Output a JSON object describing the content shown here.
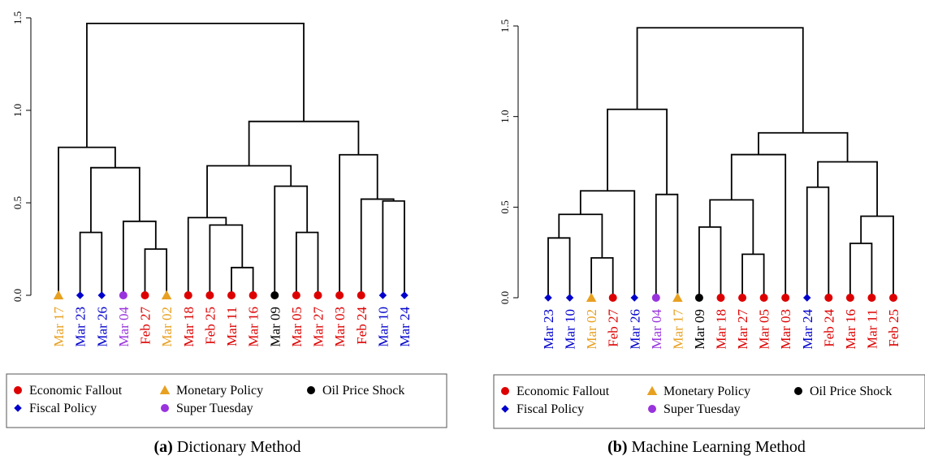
{
  "categories": {
    "Economic Fallout": {
      "color": "#dd0000",
      "marker": "circle"
    },
    "Monetary Policy": {
      "color": "#e8a020",
      "marker": "triangle"
    },
    "Oil Price Shock": {
      "color": "#000000",
      "marker": "circle"
    },
    "Fiscal Policy": {
      "color": "#0000cc",
      "marker": "diamond"
    },
    "Super Tuesday": {
      "color": "#9933dd",
      "marker": "circle"
    }
  },
  "chart_data": [
    {
      "type": "dendrogram",
      "caption_tag": "(a)",
      "caption": "Dictionary Method",
      "ylim": [
        0,
        1.5
      ],
      "yticks": [
        "0.0",
        "0.5",
        "1.0",
        "1.5"
      ],
      "leaves": [
        {
          "label": "Mar 17",
          "category": "Monetary Policy"
        },
        {
          "label": "Mar 23",
          "category": "Fiscal Policy"
        },
        {
          "label": "Mar 26",
          "category": "Fiscal Policy"
        },
        {
          "label": "Mar 04",
          "category": "Super Tuesday"
        },
        {
          "label": "Feb 27",
          "category": "Economic Fallout"
        },
        {
          "label": "Mar 02",
          "category": "Monetary Policy"
        },
        {
          "label": "Mar 18",
          "category": "Economic Fallout"
        },
        {
          "label": "Feb 25",
          "category": "Economic Fallout"
        },
        {
          "label": "Mar 11",
          "category": "Economic Fallout"
        },
        {
          "label": "Mar 16",
          "category": "Economic Fallout"
        },
        {
          "label": "Mar 09",
          "category": "Oil Price Shock"
        },
        {
          "label": "Mar 05",
          "category": "Economic Fallout"
        },
        {
          "label": "Mar 27",
          "category": "Economic Fallout"
        },
        {
          "label": "Mar 03",
          "category": "Economic Fallout"
        },
        {
          "label": "Feb 24",
          "category": "Economic Fallout"
        },
        {
          "label": "Mar 10",
          "category": "Fiscal Policy"
        },
        {
          "label": "Mar 24",
          "category": "Fiscal Policy"
        }
      ],
      "merges": [
        [
          1,
          2,
          0.34
        ],
        [
          4,
          5,
          0.25
        ],
        [
          3,
          18,
          0.4
        ],
        [
          17,
          19,
          0.69
        ],
        [
          0,
          20,
          0.8
        ],
        [
          8,
          9,
          0.15
        ],
        [
          7,
          22,
          0.38
        ],
        [
          6,
          23,
          0.42
        ],
        [
          11,
          12,
          0.34
        ],
        [
          10,
          25,
          0.59
        ],
        [
          24,
          26,
          0.7
        ],
        [
          15,
          16,
          0.51
        ],
        [
          14,
          28,
          0.52
        ],
        [
          13,
          29,
          0.76
        ],
        [
          27,
          30,
          0.94
        ],
        [
          21,
          31,
          1.47
        ]
      ],
      "legend": {
        "rows": [
          [
            "Economic Fallout",
            "Monetary Policy",
            "Oil Price Shock"
          ],
          [
            "Fiscal Policy",
            "Super Tuesday"
          ]
        ]
      }
    },
    {
      "type": "dendrogram",
      "caption_tag": "(b)",
      "caption": "Machine Learning Method",
      "ylim": [
        0,
        1.5
      ],
      "yticks": [
        "0.0",
        "0.5",
        "1.0",
        "1.5"
      ],
      "leaves": [
        {
          "label": "Mar 23",
          "category": "Fiscal Policy"
        },
        {
          "label": "Mar 10",
          "category": "Fiscal Policy"
        },
        {
          "label": "Mar 02",
          "category": "Monetary Policy"
        },
        {
          "label": "Feb 27",
          "category": "Economic Fallout"
        },
        {
          "label": "Mar 26",
          "category": "Fiscal Policy"
        },
        {
          "label": "Mar 04",
          "category": "Super Tuesday"
        },
        {
          "label": "Mar 17",
          "category": "Monetary Policy"
        },
        {
          "label": "Mar 09",
          "category": "Oil Price Shock"
        },
        {
          "label": "Mar 18",
          "category": "Economic Fallout"
        },
        {
          "label": "Mar 27",
          "category": "Economic Fallout"
        },
        {
          "label": "Mar 05",
          "category": "Economic Fallout"
        },
        {
          "label": "Mar 03",
          "category": "Economic Fallout"
        },
        {
          "label": "Mar 24",
          "category": "Fiscal Policy"
        },
        {
          "label": "Feb 24",
          "category": "Economic Fallout"
        },
        {
          "label": "Mar 16",
          "category": "Economic Fallout"
        },
        {
          "label": "Mar 11",
          "category": "Economic Fallout"
        },
        {
          "label": "Feb 25",
          "category": "Economic Fallout"
        }
      ],
      "merges": [
        [
          0,
          1,
          0.33
        ],
        [
          2,
          3,
          0.22
        ],
        [
          17,
          18,
          0.46
        ],
        [
          19,
          4,
          0.59
        ],
        [
          5,
          6,
          0.57
        ],
        [
          20,
          21,
          1.04
        ],
        [
          7,
          8,
          0.39
        ],
        [
          9,
          10,
          0.24
        ],
        [
          23,
          24,
          0.54
        ],
        [
          25,
          11,
          0.79
        ],
        [
          14,
          15,
          0.3
        ],
        [
          27,
          16,
          0.45
        ],
        [
          12,
          13,
          0.61
        ],
        [
          29,
          28,
          0.75
        ],
        [
          26,
          30,
          0.91
        ],
        [
          22,
          31,
          1.49
        ]
      ],
      "legend": {
        "rows": [
          [
            "Economic Fallout",
            "Monetary Policy",
            "Oil Price Shock"
          ],
          [
            "Fiscal Policy",
            "Super Tuesday"
          ]
        ]
      }
    }
  ]
}
